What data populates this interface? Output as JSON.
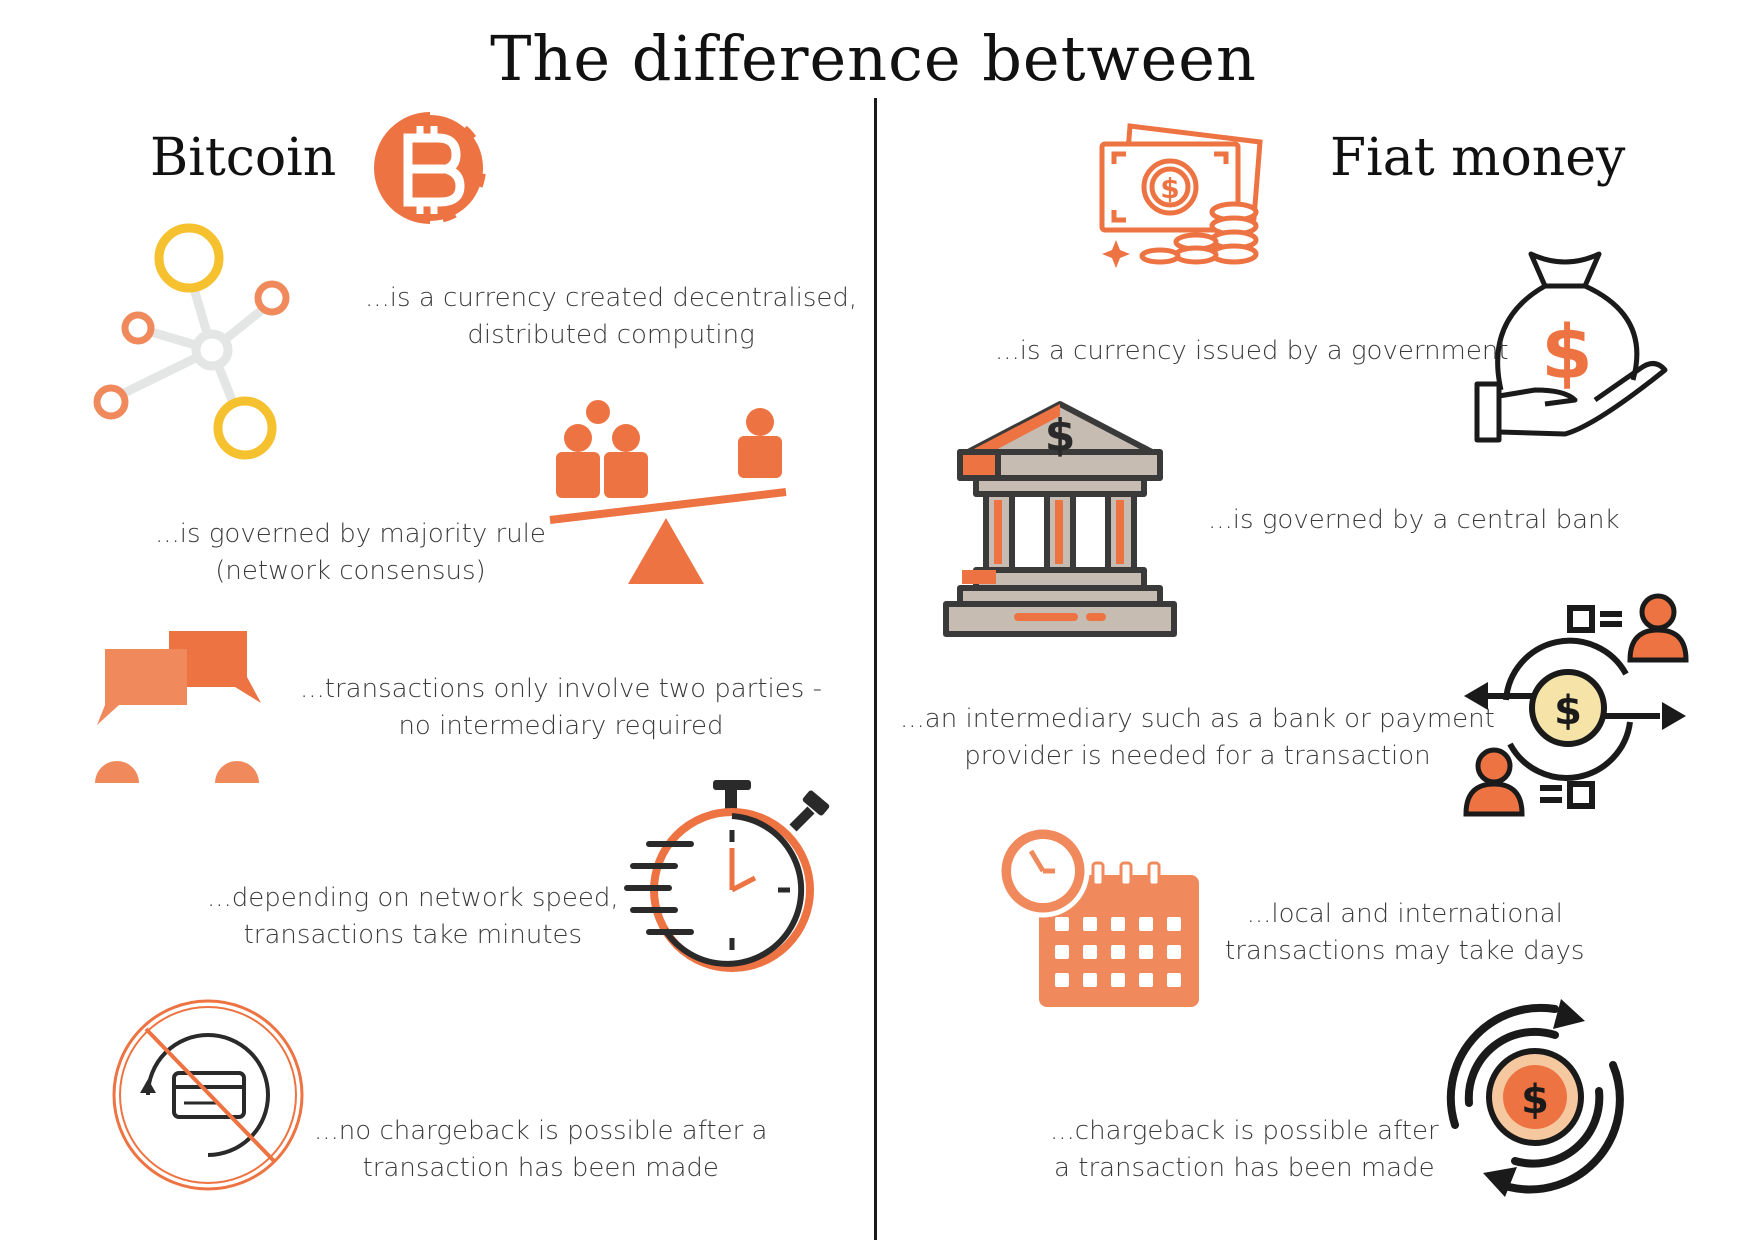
{
  "title": "The difference between",
  "colors": {
    "accent": "#ee7342",
    "accent_light": "#f08a5d",
    "yellow": "#f5c12e",
    "gray": "#e3e6e5",
    "dark": "#2a2a2a",
    "bank_gray": "#c7bcb2"
  },
  "left": {
    "heading": "Bitcoin",
    "heading_icon": "bitcoin-logo-icon",
    "points": [
      {
        "icon": "network-nodes-icon",
        "lines": [
          "...is a currency created decentralised,",
          "distributed computing"
        ]
      },
      {
        "icon": "seesaw-majority-icon",
        "lines": [
          "...is governed by majority rule",
          "(network consensus)"
        ]
      },
      {
        "icon": "peer-chat-icon",
        "lines": [
          "...transactions only involve two parties -",
          "no intermediary required"
        ]
      },
      {
        "icon": "stopwatch-icon",
        "lines": [
          "...depending on network speed,",
          "transactions take minutes"
        ]
      },
      {
        "icon": "no-chargeback-card-icon",
        "lines": [
          "...no chargeback is possible after a",
          "transaction has been made"
        ]
      }
    ]
  },
  "right": {
    "heading": "Fiat money",
    "heading_icon": "cash-coins-icon",
    "points": [
      {
        "icon": "money-bag-hand-icon",
        "lines": [
          "...is a currency issued by a government"
        ]
      },
      {
        "icon": "bank-building-icon",
        "lines": [
          "...is governed by a central bank"
        ]
      },
      {
        "icon": "payment-intermediary-icon",
        "lines": [
          "...an intermediary such as a bank or payment",
          "provider is needed for a transaction"
        ]
      },
      {
        "icon": "calendar-clock-icon",
        "lines": [
          "...local and international",
          "transactions may take days"
        ]
      },
      {
        "icon": "refund-coin-cycle-icon",
        "lines": [
          "...chargeback is possible after",
          "a transaction has been made"
        ]
      }
    ]
  }
}
